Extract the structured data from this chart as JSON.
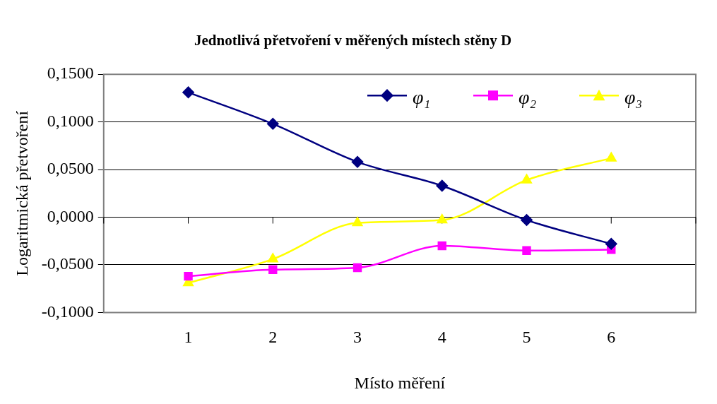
{
  "chart_data": {
    "type": "line",
    "title": "Jednotlivá přetvoření v měřených místech stěny D",
    "xlabel": "Místo měření",
    "ylabel": "Logaritmická přetvoření",
    "x": [
      1,
      2,
      3,
      4,
      5,
      6
    ],
    "xlim": [
      0,
      7
    ],
    "xticks": [
      {
        "value": 0,
        "label": null
      },
      1,
      2,
      3,
      4,
      5,
      6,
      {
        "value": 7,
        "label": null
      }
    ],
    "ylim": [
      -0.1,
      0.15
    ],
    "yticks": [
      {
        "value": -0.1,
        "label": "-0,1000"
      },
      {
        "value": -0.05,
        "label": "-0,0500"
      },
      {
        "value": 0,
        "label": "0,0000"
      },
      {
        "value": 0.05,
        "label": "0,0500"
      },
      {
        "value": 0.1,
        "label": "0,1000"
      },
      {
        "value": 0.15,
        "label": "0,1500"
      }
    ],
    "grid": "y",
    "legend": "top right",
    "series": [
      {
        "name": "φ₁",
        "color": "#000080",
        "marker": "diamond",
        "values": [
          0.131,
          0.098,
          0.058,
          0.033,
          -0.003,
          -0.028
        ]
      },
      {
        "name": "φ₂",
        "color": "#ff00ff",
        "marker": "square",
        "values": [
          -0.062,
          -0.055,
          -0.053,
          -0.03,
          -0.035,
          -0.034
        ]
      },
      {
        "name": "φ₃",
        "color": "#ffff00",
        "marker": "triangle",
        "values": [
          -0.069,
          -0.044,
          -0.006,
          -0.003,
          0.039,
          0.062
        ]
      }
    ]
  }
}
